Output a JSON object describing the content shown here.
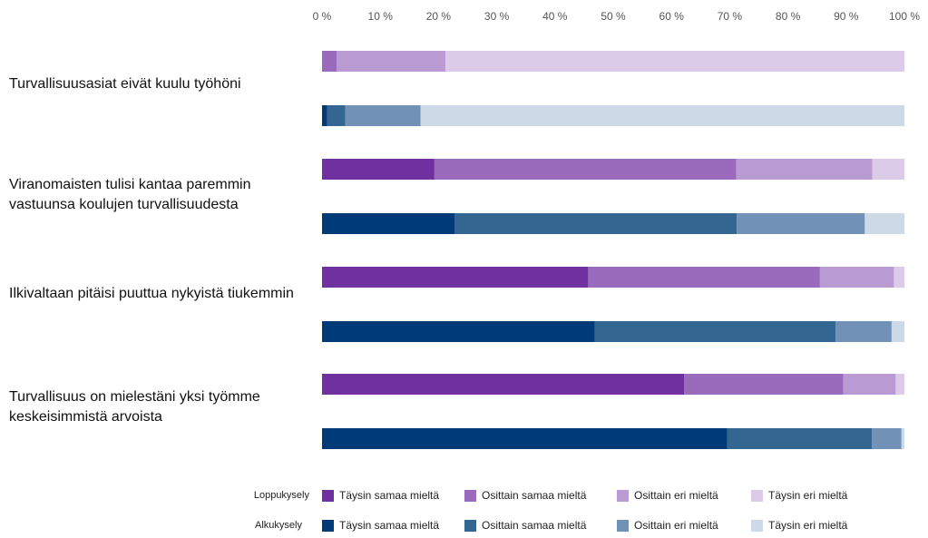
{
  "chart_data": {
    "type": "bar",
    "orientation": "horizontal",
    "stacked": true,
    "xlim": [
      0,
      100
    ],
    "x_ticks": [
      "0 %",
      "10 %",
      "20 %",
      "30 %",
      "40 %",
      "50 %",
      "60 %",
      "70 %",
      "80 %",
      "90 %",
      "100 %"
    ],
    "grid": false,
    "legend_position": "bottom",
    "categories": [
      "Turvallisuusasiat eivät kuulu työhöni",
      "Viranomaisten tulisi kantaa paremmin vastuunsa koulujen turvallisuudesta",
      "Ilkivaltaan pitäisi puuttua nykyistä tiukemmin",
      "Turvallisuus on mielestäni yksi työmme keskeisimmistä arvoista"
    ],
    "surveys": [
      {
        "name": "Loppukysely",
        "series": [
          {
            "name": "Täysin samaa mieltä",
            "color": "#7030a0",
            "values": [
              0,
              19.3,
              45.7,
              62.2
            ]
          },
          {
            "name": "Osittain samaa mieltä",
            "color": "#9a6bbd",
            "values": [
              2.5,
              51.8,
              39.8,
              27.3
            ]
          },
          {
            "name": "Osittain eri mieltä",
            "color": "#b99ad2",
            "values": [
              18.7,
              23.4,
              12.7,
              9.0
            ]
          },
          {
            "name": "Täysin eri mieltä",
            "color": "#dccbe8",
            "values": [
              78.8,
              5.5,
              1.8,
              1.5
            ]
          }
        ]
      },
      {
        "name": "Alkukysely",
        "series": [
          {
            "name": "Täysin samaa mieltä",
            "color": "#003b77",
            "values": [
              0.9,
              22.8,
              46.8,
              69.6
            ]
          },
          {
            "name": "Osittain samaa mieltä",
            "color": "#336690",
            "values": [
              3.1,
              48.4,
              41.4,
              24.8
            ]
          },
          {
            "name": "Osittain eri mieltä",
            "color": "#7191b6",
            "values": [
              12.9,
              22.0,
              9.6,
              5.1
            ]
          },
          {
            "name": "Täysin eri mieltä",
            "color": "#cdd9e6",
            "values": [
              83.1,
              6.8,
              2.2,
              0.5
            ]
          }
        ]
      }
    ]
  }
}
